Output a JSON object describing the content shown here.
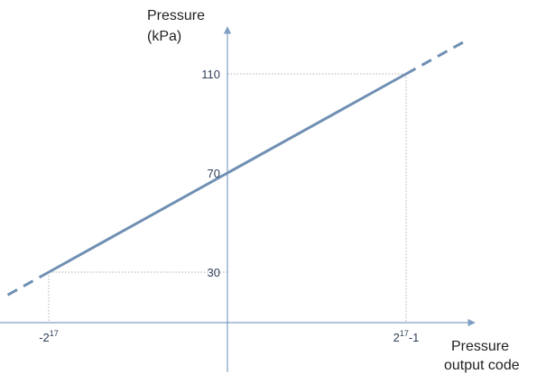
{
  "chart_data": {
    "type": "line",
    "title": "",
    "ylabel_lines": [
      "Pressure",
      "(kPa)"
    ],
    "xlabel_lines": [
      "Pressure",
      "output code"
    ],
    "y_ticks": [
      {
        "value": 30,
        "label": "30"
      },
      {
        "value": 70,
        "label": "70"
      },
      {
        "value": 110,
        "label": "110"
      }
    ],
    "x_ticks": [
      {
        "value": -131072,
        "base": "-2",
        "exp": "17",
        "suffix": ""
      },
      {
        "value": 131071,
        "base": "2",
        "exp": "17",
        "suffix": "-1"
      }
    ],
    "series": [
      {
        "points": [
          {
            "x": -131072,
            "y": 30
          },
          {
            "x": 131071,
            "y": 110
          }
        ],
        "extrapolated": true
      }
    ],
    "grid": false,
    "guide_lines": "dotted",
    "colors": {
      "line": "#6f8fb3",
      "axis": "#7f9fc3",
      "guide": "#b0b0b0",
      "tick_text": "#2f3f5a",
      "title_text": "#222222"
    }
  }
}
